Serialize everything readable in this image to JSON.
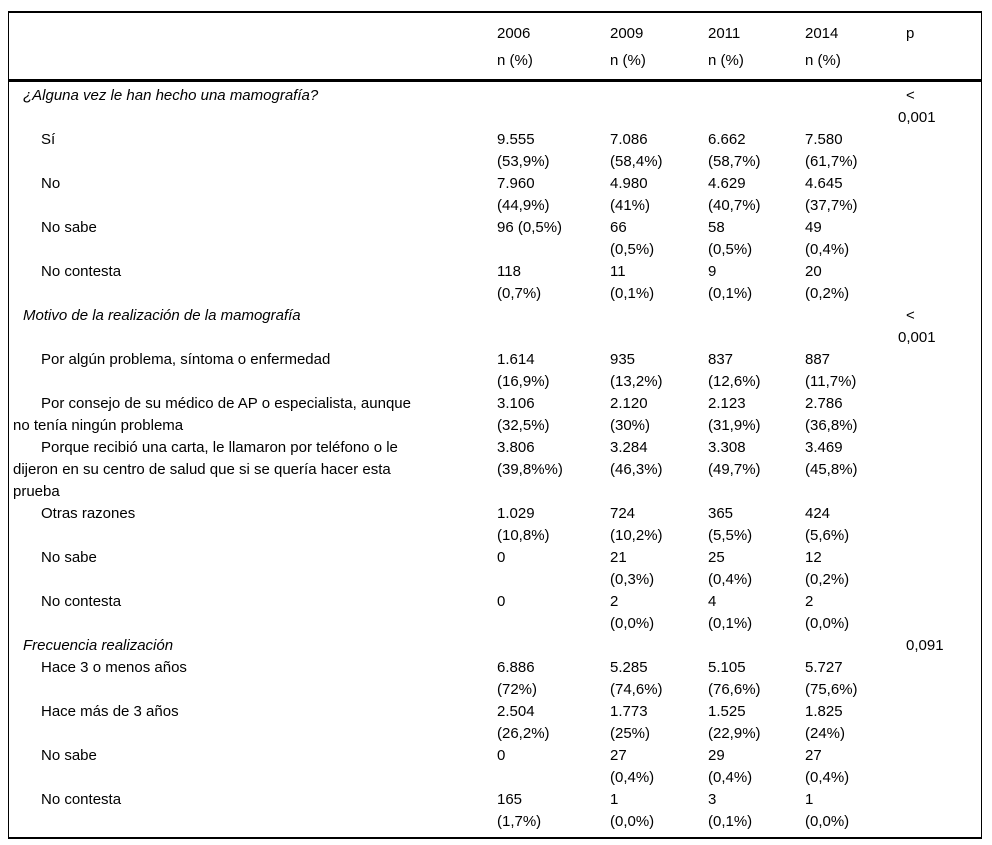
{
  "colors": {
    "text": "#000000",
    "background": "#ffffff",
    "border": "#000000"
  },
  "table": {
    "p_header": "p",
    "columns": [
      {
        "year": "2006",
        "sub": "n (%)"
      },
      {
        "year": "2009",
        "sub": "n (%)"
      },
      {
        "year": "2011",
        "sub": "n (%)"
      },
      {
        "year": "2014",
        "sub": "n (%)"
      }
    ],
    "rows": [
      {
        "type": "section",
        "label": "¿Alguna vez le han hecho una mamografía?",
        "cells": [
          [],
          [],
          [],
          []
        ],
        "p": [
          "<",
          "0,001"
        ]
      },
      {
        "type": "item",
        "label": [
          "Sí"
        ],
        "cells": [
          [
            "9.555",
            "(53,9%)"
          ],
          [
            "7.086",
            "(58,4%)"
          ],
          [
            "6.662",
            "(58,7%)"
          ],
          [
            "7.580",
            "(61,7%)"
          ]
        ],
        "p": []
      },
      {
        "type": "item",
        "label": [
          "No"
        ],
        "cells": [
          [
            "7.960",
            "(44,9%)"
          ],
          [
            "4.980",
            "(41%)"
          ],
          [
            "4.629",
            "(40,7%)"
          ],
          [
            "4.645",
            "(37,7%)"
          ]
        ],
        "p": []
      },
      {
        "type": "item",
        "label": [
          "No sabe"
        ],
        "cells": [
          [
            "96 (0,5%)"
          ],
          [
            "66",
            "(0,5%)"
          ],
          [
            "58",
            "(0,5%)"
          ],
          [
            "49",
            "(0,4%)"
          ]
        ],
        "p": []
      },
      {
        "type": "item",
        "label": [
          "No contesta"
        ],
        "cells": [
          [
            "118",
            "(0,7%)"
          ],
          [
            "11",
            "(0,1%)"
          ],
          [
            "9",
            "(0,1%)"
          ],
          [
            "20",
            "(0,2%)"
          ]
        ],
        "p": []
      },
      {
        "type": "section",
        "label": "Motivo de la realización de la mamografía",
        "cells": [
          [],
          [],
          [],
          []
        ],
        "p": [
          "<",
          "0,001"
        ]
      },
      {
        "type": "item",
        "label": [
          "Por algún problema, síntoma o enfermedad"
        ],
        "cells": [
          [
            "1.614",
            "(16,9%)"
          ],
          [
            "935",
            "(13,2%)"
          ],
          [
            "837",
            "(12,6%)"
          ],
          [
            "887",
            "(11,7%)"
          ]
        ],
        "p": []
      },
      {
        "type": "item",
        "label": [
          "Por consejo de su médico de AP o especialista, aunque",
          "no tenía ningún problema"
        ],
        "cells": [
          [
            "3.106",
            "(32,5%)"
          ],
          [
            "2.120",
            "(30%)"
          ],
          [
            "2.123",
            "(31,9%)"
          ],
          [
            "2.786",
            "(36,8%)"
          ]
        ],
        "p": []
      },
      {
        "type": "item",
        "label": [
          "Porque recibió una carta, le llamaron por teléfono o le",
          "dijeron en su centro de salud que si se quería hacer esta",
          "prueba"
        ],
        "cells": [
          [
            "3.806",
            "(39,8%%)"
          ],
          [
            "3.284",
            "(46,3%)"
          ],
          [
            "3.308",
            "(49,7%)"
          ],
          [
            "3.469",
            "(45,8%)"
          ]
        ],
        "p": []
      },
      {
        "type": "item",
        "label": [
          "Otras razones"
        ],
        "cells": [
          [
            "1.029",
            "(10,8%)"
          ],
          [
            "724",
            "(10,2%)"
          ],
          [
            "365",
            "(5,5%)"
          ],
          [
            "424",
            "(5,6%)"
          ]
        ],
        "p": []
      },
      {
        "type": "item",
        "label": [
          "No sabe"
        ],
        "cells": [
          [
            "0"
          ],
          [
            "21",
            "(0,3%)"
          ],
          [
            "25",
            "(0,4%)"
          ],
          [
            "12",
            "(0,2%)"
          ]
        ],
        "p": []
      },
      {
        "type": "item",
        "label": [
          "No contesta"
        ],
        "cells": [
          [
            "0"
          ],
          [
            "2",
            "(0,0%)"
          ],
          [
            "4",
            "(0,1%)"
          ],
          [
            "2",
            "(0,0%)"
          ]
        ],
        "p": []
      },
      {
        "type": "section",
        "label": "Frecuencia realización",
        "cells": [
          [],
          [],
          [],
          []
        ],
        "p": [
          "0,091"
        ]
      },
      {
        "type": "item",
        "label": [
          "Hace 3 o menos años"
        ],
        "cells": [
          [
            "6.886",
            "(72%)"
          ],
          [
            "5.285",
            "(74,6%)"
          ],
          [
            "5.105",
            "(76,6%)"
          ],
          [
            "5.727",
            "(75,6%)"
          ]
        ],
        "p": []
      },
      {
        "type": "item",
        "label": [
          "Hace más de 3 años"
        ],
        "cells": [
          [
            "2.504",
            "(26,2%)"
          ],
          [
            "1.773",
            "(25%)"
          ],
          [
            "1.525",
            "(22,9%)"
          ],
          [
            "1.825",
            "(24%)"
          ]
        ],
        "p": []
      },
      {
        "type": "item",
        "label": [
          "No sabe"
        ],
        "cells": [
          [
            "0"
          ],
          [
            "27",
            "(0,4%)"
          ],
          [
            "29",
            "(0,4%)"
          ],
          [
            "27",
            "(0,4%)"
          ]
        ],
        "p": []
      },
      {
        "type": "item",
        "label": [
          "No contesta"
        ],
        "cells": [
          [
            "165",
            "(1,7%)"
          ],
          [
            "1",
            "(0,0%)"
          ],
          [
            "3",
            "(0,1%)"
          ],
          [
            "1",
            "(0,0%)"
          ]
        ],
        "p": []
      }
    ]
  }
}
